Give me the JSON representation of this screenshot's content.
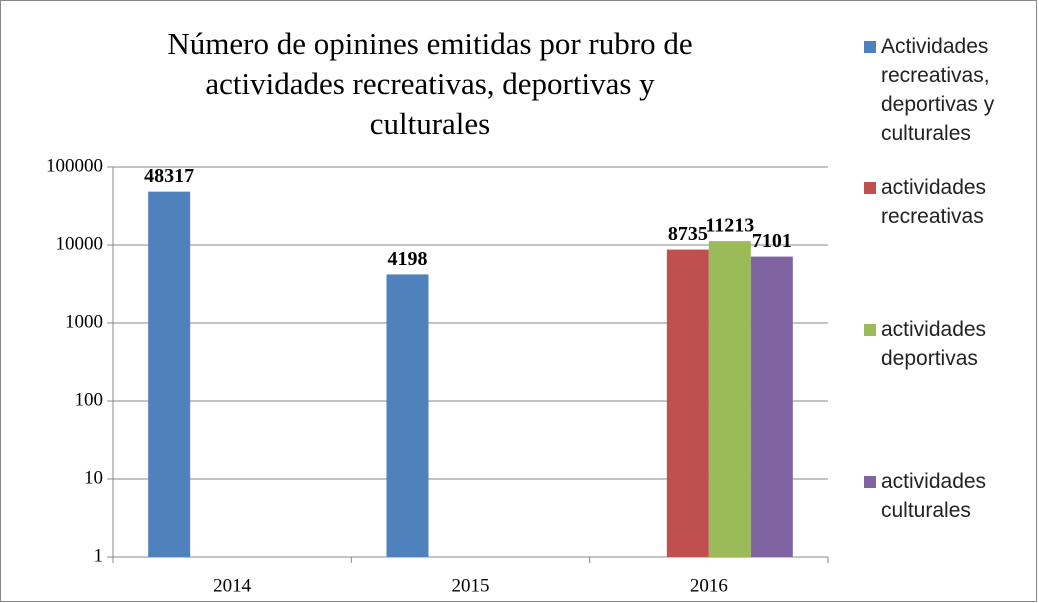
{
  "chart_data": {
    "type": "bar",
    "title": "Número de opinines emitidas por rubro de actividades recreativas, deportivas y culturales",
    "categories": [
      "2014",
      "2015",
      "2016"
    ],
    "series": [
      {
        "name": "Actividades recreativas, deportivas y culturales",
        "color": "#4f81bd",
        "values": [
          48317,
          4198,
          null
        ]
      },
      {
        "name": "actividades recreativas",
        "color": "#c0504d",
        "values": [
          null,
          null,
          8735
        ]
      },
      {
        "name": "actividades deportivas",
        "color": "#9bbb59",
        "values": [
          null,
          null,
          11213
        ]
      },
      {
        "name": "actividades culturales",
        "color": "#8064a2",
        "values": [
          null,
          null,
          7101
        ]
      }
    ],
    "ylim": [
      1,
      100000
    ],
    "yticks": [
      1,
      10,
      100,
      1000,
      10000,
      100000
    ],
    "log_scale": true,
    "grid": true,
    "legend": "right"
  }
}
